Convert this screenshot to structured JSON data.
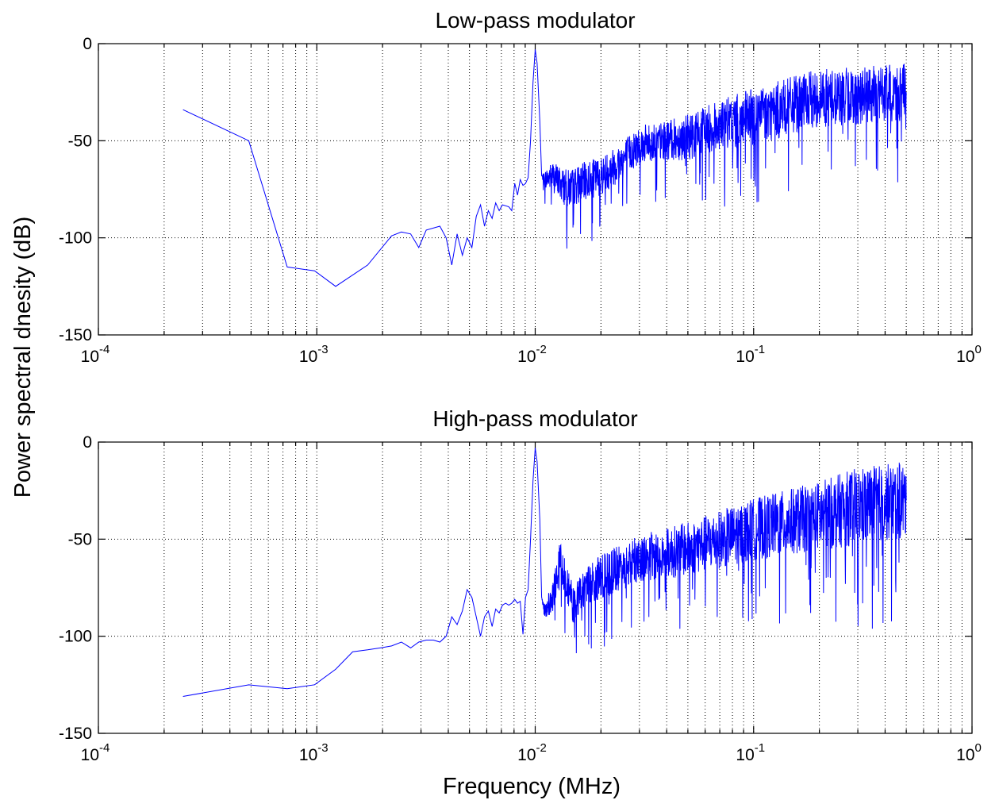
{
  "figure": {
    "ylabel": "Power spectral dnesity (dB)",
    "xlabel": "Frequency (MHz)"
  },
  "chart_data": [
    {
      "type": "line",
      "title": "Low-pass modulator",
      "xscale": "log",
      "xlim": [
        0.0001,
        1
      ],
      "ylim": [
        -150,
        0
      ],
      "xticks": [
        {
          "base": "10",
          "exp": "-4"
        },
        {
          "base": "10",
          "exp": "-3"
        },
        {
          "base": "10",
          "exp": "-2"
        },
        {
          "base": "10",
          "exp": "-1"
        },
        {
          "base": "10",
          "exp": "0"
        }
      ],
      "yticks": [
        "0",
        "-50",
        "-100",
        "-150"
      ],
      "grid": true,
      "color": "#0000ff",
      "anchors": {
        "x": [
          0.000244,
          0.000488,
          0.000732,
          0.000977,
          0.00122,
          0.00171,
          0.0022,
          0.00244,
          0.00269,
          0.00293,
          0.00317,
          0.00366,
          0.00391,
          0.00415,
          0.00439,
          0.00464,
          0.00488,
          0.00513,
          0.00537,
          0.00562,
          0.00586,
          0.0061,
          0.00635,
          0.00659,
          0.00684,
          0.00708,
          0.00757,
          0.00781,
          0.00806,
          0.0083,
          0.00854,
          0.00879,
          0.00903,
          0.00928,
          0.00952,
          0.00977,
          0.01,
          0.0102,
          0.0105,
          0.0107,
          0.011,
          0.012,
          0.014,
          0.016,
          0.02,
          0.025,
          0.03,
          0.04,
          0.05,
          0.07,
          0.1,
          0.15,
          0.2,
          0.3,
          0.4,
          0.5
        ],
        "y": [
          -34,
          -50,
          -115,
          -117,
          -125,
          -114,
          -99,
          -97,
          -98,
          -105,
          -96,
          -94,
          -100,
          -114,
          -98,
          -109,
          -100,
          -105,
          -89,
          -83,
          -94,
          -86,
          -90,
          -82,
          -86,
          -83,
          -84,
          -86,
          -72,
          -78,
          -70,
          -73,
          -72,
          -69,
          -50,
          -20,
          -3,
          -10,
          -40,
          -68,
          -70,
          -68,
          -75,
          -72,
          -68,
          -60,
          -52,
          -50,
          -48,
          -42,
          -38,
          -32,
          -28,
          -27,
          -26,
          -25
        ],
        "noise_amplitude": [
          0,
          0,
          0,
          0,
          0,
          0,
          0,
          0,
          0,
          0,
          0,
          0,
          0,
          0,
          0,
          0,
          0,
          0,
          0,
          0,
          0,
          0,
          0,
          0,
          0,
          0,
          0,
          0,
          0,
          0,
          0,
          0,
          0,
          0,
          0,
          0,
          0,
          0,
          0,
          0,
          4,
          8,
          10,
          10,
          10,
          10,
          10,
          10,
          12,
          13,
          15,
          15,
          15,
          15,
          15,
          15
        ]
      }
    },
    {
      "type": "line",
      "title": "High-pass modulator",
      "xscale": "log",
      "xlim": [
        0.0001,
        1
      ],
      "ylim": [
        -150,
        0
      ],
      "xticks": [
        {
          "base": "10",
          "exp": "-4"
        },
        {
          "base": "10",
          "exp": "-3"
        },
        {
          "base": "10",
          "exp": "-2"
        },
        {
          "base": "10",
          "exp": "-1"
        },
        {
          "base": "10",
          "exp": "0"
        }
      ],
      "yticks": [
        "0",
        "-50",
        "-100",
        "-150"
      ],
      "grid": true,
      "color": "#0000ff",
      "anchors": {
        "x": [
          0.000244,
          0.000488,
          0.000732,
          0.000977,
          0.00122,
          0.00146,
          0.00171,
          0.00195,
          0.0022,
          0.00244,
          0.00269,
          0.00293,
          0.00317,
          0.00342,
          0.00366,
          0.00391,
          0.00415,
          0.00439,
          0.00464,
          0.00488,
          0.00513,
          0.00537,
          0.00562,
          0.00586,
          0.0061,
          0.00635,
          0.00659,
          0.00684,
          0.00708,
          0.00732,
          0.00757,
          0.00781,
          0.00806,
          0.0083,
          0.00854,
          0.00879,
          0.00903,
          0.00928,
          0.00952,
          0.00977,
          0.01,
          0.0102,
          0.0105,
          0.0107,
          0.011,
          0.012,
          0.013,
          0.015,
          0.017,
          0.02,
          0.03,
          0.05,
          0.1,
          0.2,
          0.3,
          0.5
        ],
        "y": [
          -131,
          -125,
          -127,
          -125,
          -117,
          -108,
          -107,
          -106,
          -105,
          -103,
          -106,
          -103,
          -102,
          -102,
          -103,
          -100,
          -90,
          -94,
          -87,
          -76,
          -80,
          -90,
          -100,
          -90,
          -87,
          -95,
          -86,
          -88,
          -84,
          -83,
          -84,
          -83,
          -81,
          -83,
          -82,
          -99,
          -80,
          -76,
          -50,
          -20,
          -3,
          -10,
          -40,
          -80,
          -87,
          -81,
          -60,
          -85,
          -74,
          -70,
          -60,
          -55,
          -45,
          -38,
          -33,
          -30
        ],
        "noise_amplitude": [
          0,
          0,
          0,
          0,
          0,
          0,
          0,
          0,
          0,
          0,
          0,
          0,
          0,
          0,
          0,
          0,
          0,
          0,
          0,
          0,
          0,
          0,
          0,
          0,
          0,
          0,
          0,
          0,
          0,
          0,
          0,
          0,
          0,
          0,
          0,
          0,
          0,
          0,
          0,
          0,
          0,
          0,
          0,
          0,
          4,
          8,
          10,
          10,
          10,
          12,
          12,
          14,
          16,
          18,
          20,
          20
        ]
      }
    }
  ]
}
